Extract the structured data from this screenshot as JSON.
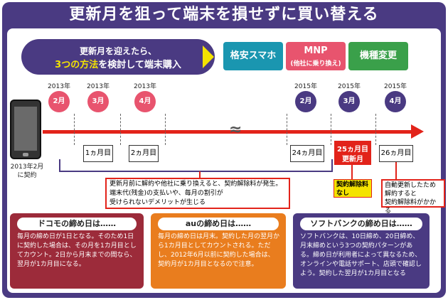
{
  "title": "更新月を狙って端末を損せずに買い替える",
  "pill": {
    "line1": "更新月を迎えたら、",
    "line2_highlight": "3つの方法",
    "line2_rest": "を検討して端末購入"
  },
  "options": [
    {
      "label": "格安スマホ",
      "color": "#1a96b0"
    },
    {
      "label": "MNP",
      "sub": "(他社に乗り換え)",
      "color": "#e8546e"
    },
    {
      "label": "機種変更",
      "color": "#3aa04a"
    }
  ],
  "phone_date": {
    "line1": "2013年2月",
    "line2": "に契約"
  },
  "timeline": {
    "points": [
      {
        "year": "2013年",
        "month": "2月",
        "color": "red"
      },
      {
        "year": "2013年",
        "month": "3月",
        "color": "red"
      },
      {
        "year": "2013年",
        "month": "4月",
        "color": "red"
      },
      {
        "year": "2015年",
        "month": "2月",
        "color": "purple"
      },
      {
        "year": "2015年",
        "month": "3月",
        "color": "purple"
      },
      {
        "year": "2015年",
        "month": "4月",
        "color": "purple"
      }
    ],
    "months": [
      "1ヵ月目",
      "2ヵ月目",
      "24ヵ月目",
      "25ヵ月目",
      "更新月",
      "26ヵ月目"
    ]
  },
  "note1": {
    "line1": "更新月前に解約や他社に乗り換えると、契約解除料が発生。",
    "line2": "端末代(残金)の支払いや、毎月の割引が",
    "line3": "受けられないデメリットが生じる"
  },
  "note2": {
    "line1": "契約解除料",
    "line2": "なし"
  },
  "note3": {
    "line1": "自動更新したため",
    "line2": "解約すると",
    "line3": "契約解除料がかかる"
  },
  "boxes": [
    {
      "heading": "ドコモの締め日は……",
      "body": "毎月の締め日が1日となる。そのため1日に契約した場合は、その月を1カ月目としてカウント。2日から月末までの間なら、翌月が1カ月目になる。"
    },
    {
      "heading": "auの締め日は……",
      "body": "毎月の締め日は月末。契約した月の翌月から1カ月目としてカウントされる。ただし、2012年6月以前に契約した場合は、契約月が1カ月目となるので注意。"
    },
    {
      "heading": "ソフトバンクの締め日は……",
      "body": "ソフトバンクは、10日締め、20日締め、月末締めという3つの契約パターンがある。締め日が利用者によって異なるため、オンラインや電話サポート、店頭で確認しよう。契約した翌月が1カ月目となる"
    }
  ]
}
